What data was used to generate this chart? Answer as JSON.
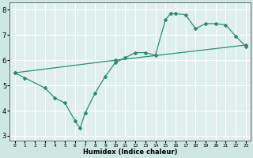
{
  "curve1_x": [
    0,
    1,
    3,
    4,
    5,
    6,
    6.5,
    7,
    8,
    9,
    10,
    11,
    12,
    13,
    14,
    15,
    15.5,
    16,
    17,
    18,
    19,
    20,
    21,
    22,
    23
  ],
  "curve1_y": [
    5.5,
    5.3,
    4.9,
    4.5,
    4.3,
    3.6,
    3.3,
    3.9,
    4.7,
    5.35,
    5.9,
    6.1,
    6.3,
    6.3,
    6.2,
    7.6,
    7.85,
    7.85,
    7.8,
    7.25,
    7.45,
    7.45,
    7.4,
    6.95,
    6.55
  ],
  "curve2_x": [
    0,
    10,
    23
  ],
  "curve2_y": [
    5.5,
    6.0,
    6.6
  ],
  "line_color": "#2e8b74",
  "bg_color": "#cce8e0",
  "plot_bg_color": "#dff0ec",
  "grid_color": "#ffffff",
  "xlabel": "Humidex (Indice chaleur)",
  "xlim": [
    -0.5,
    23.5
  ],
  "ylim": [
    2.8,
    8.3
  ],
  "xtick_labels": [
    "0",
    "1",
    "2",
    "3",
    "4",
    "5",
    "6",
    "7",
    "8",
    "9",
    "10",
    "11",
    "12",
    "13",
    "14",
    "15",
    "16",
    "17",
    "18",
    "19",
    "20",
    "21",
    "22",
    "23"
  ],
  "xtick_vals": [
    0,
    1,
    2,
    3,
    4,
    5,
    6,
    7,
    8,
    9,
    10,
    11,
    12,
    13,
    14,
    15,
    16,
    17,
    18,
    19,
    20,
    21,
    22,
    23
  ],
  "ytick_vals": [
    3,
    4,
    5,
    6,
    7,
    8
  ],
  "marker": "D",
  "marker_size": 2,
  "linewidth": 0.9
}
